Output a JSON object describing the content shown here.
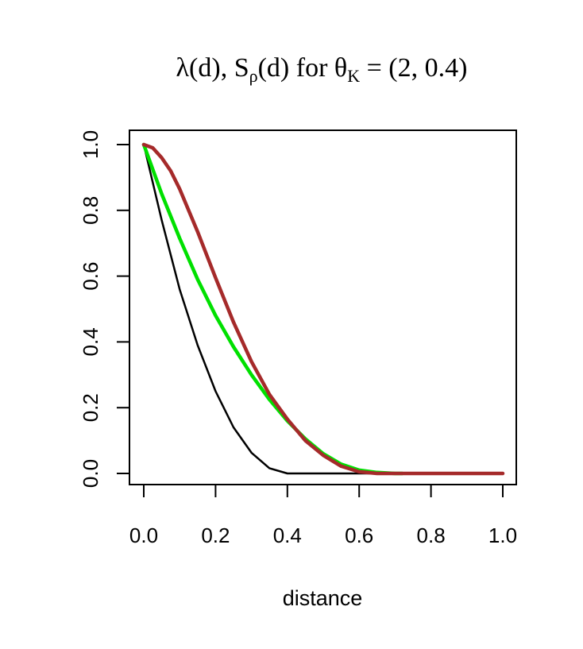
{
  "chart_data": {
    "type": "line",
    "title": {
      "lambda": "λ",
      "d1": "(d), ",
      "S": "S",
      "rho": "ρ",
      "d2": "(d)",
      "for": " for ",
      "theta": "θ",
      "K": "K",
      "eq": " = ",
      "vals": "(2, 0.4)"
    },
    "xlabel": "distance",
    "ylabel": "",
    "xlim": [
      0,
      1
    ],
    "ylim": [
      0,
      1
    ],
    "x_ticks": [
      "0.0",
      "0.2",
      "0.4",
      "0.6",
      "0.8",
      "1.0"
    ],
    "y_ticks": [
      "0.0",
      "0.2",
      "0.4",
      "0.6",
      "0.8",
      "1.0"
    ],
    "grid": false,
    "series": [
      {
        "color": "#000000",
        "width": 2.5,
        "x": [
          0,
          0.05,
          0.1,
          0.15,
          0.2,
          0.25,
          0.3,
          0.35,
          0.4,
          0.45,
          0.5,
          0.6,
          0.7,
          0.8,
          0.9,
          1.0
        ],
        "y": [
          1.0,
          0.77,
          0.56,
          0.39,
          0.25,
          0.14,
          0.063,
          0.016,
          0.0,
          0.0,
          0.0,
          0.0,
          0.0,
          0.0,
          0.0,
          0.0
        ]
      },
      {
        "color": "#00e000",
        "width": 4.5,
        "x": [
          0,
          0.05,
          0.1,
          0.15,
          0.2,
          0.25,
          0.3,
          0.35,
          0.4,
          0.45,
          0.5,
          0.55,
          0.6,
          0.65,
          0.7,
          0.72
        ],
        "y": [
          1.0,
          0.85,
          0.715,
          0.59,
          0.48,
          0.385,
          0.3,
          0.225,
          0.16,
          0.105,
          0.06,
          0.028,
          0.01,
          0.003,
          0.0,
          0.0
        ]
      },
      {
        "color": "#a52a2a",
        "width": 4.5,
        "x": [
          0,
          0.025,
          0.05,
          0.075,
          0.1,
          0.15,
          0.2,
          0.25,
          0.3,
          0.35,
          0.4,
          0.45,
          0.5,
          0.55,
          0.6,
          0.65,
          0.7,
          0.8,
          0.9,
          1.0
        ],
        "y": [
          1.0,
          0.99,
          0.96,
          0.92,
          0.865,
          0.735,
          0.595,
          0.46,
          0.34,
          0.24,
          0.165,
          0.1,
          0.055,
          0.022,
          0.005,
          0.0,
          0.0,
          0.0,
          0.0,
          0.0
        ]
      }
    ]
  }
}
